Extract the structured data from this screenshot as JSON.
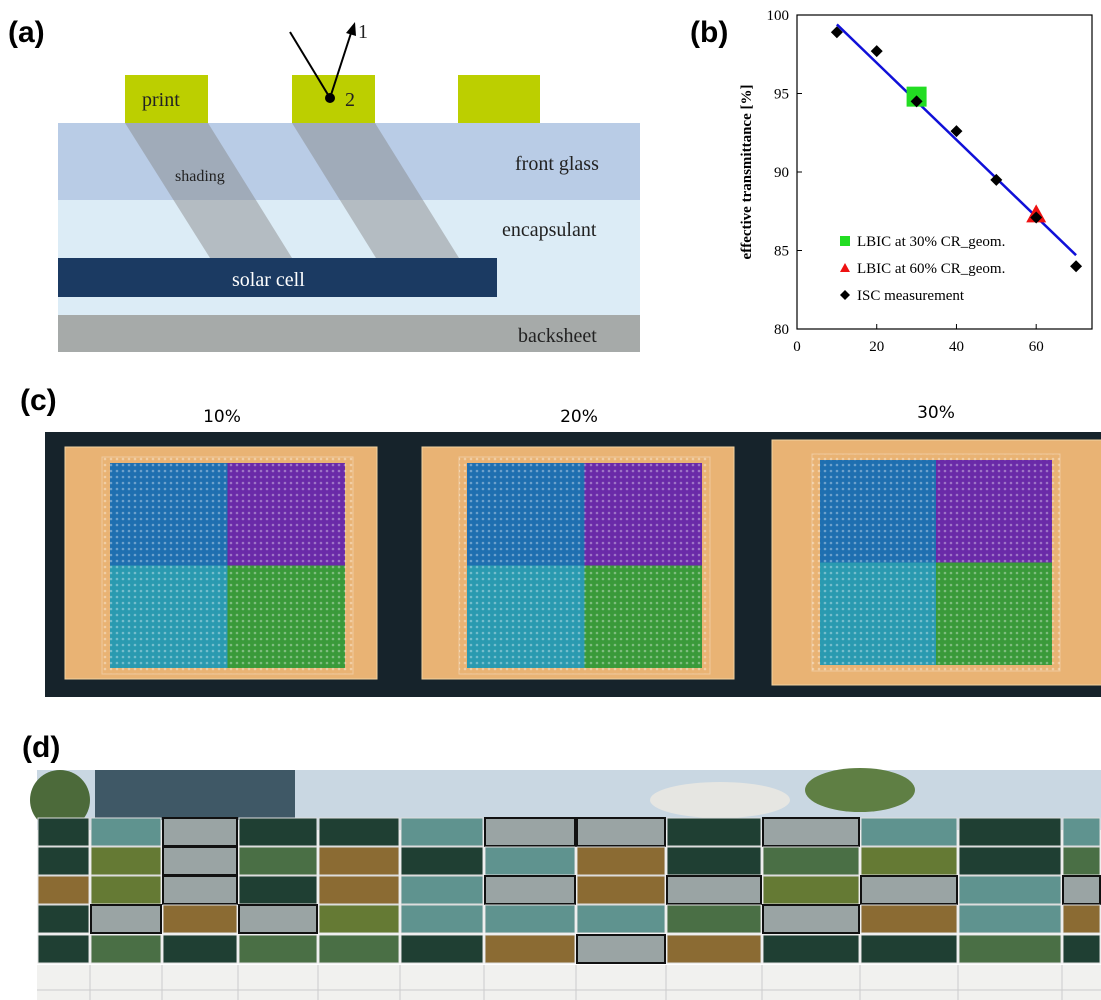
{
  "panel_labels": [
    "(a)",
    "(b)",
    "(c)",
    "(d)"
  ],
  "diagram": {
    "print": "print",
    "ray_1": "1",
    "ray_2": "2",
    "shading": "shading",
    "front_glass": "front glass",
    "encapsulant": "encapsulant",
    "solar_cell": "solar cell",
    "backsheet": "backsheet"
  },
  "chart_data": {
    "type": "scatter",
    "y_label": "effective transmittance [%]",
    "xlim": [
      0,
      74
    ],
    "xticks": [
      0,
      20,
      40,
      60
    ],
    "ylim": [
      80,
      100
    ],
    "yticks": [
      80,
      85,
      90,
      95,
      100
    ],
    "series": [
      {
        "name": "LBIC at 30% CR_geom.",
        "color": "#22dd22",
        "marker": "square",
        "x": [
          30
        ],
        "values": [
          94.8
        ]
      },
      {
        "name": "LBIC at 60% CR_geom.",
        "color": "#ee1111",
        "marker": "triangle",
        "x": [
          60
        ],
        "values": [
          87.3
        ]
      },
      {
        "name": "ISC measurement",
        "color": "#000000",
        "marker": "diamond",
        "x": [
          10,
          20,
          30,
          40,
          50,
          60,
          70
        ],
        "values": [
          98.9,
          97.7,
          94.5,
          92.6,
          89.5,
          87.1,
          84.0
        ]
      }
    ],
    "fit_line": {
      "color": "#1010d8",
      "x": [
        10,
        70
      ],
      "values": [
        99.4,
        84.7
      ]
    },
    "legend": "lower left"
  },
  "photo_captions": [
    "10%",
    "20%",
    "30%"
  ]
}
